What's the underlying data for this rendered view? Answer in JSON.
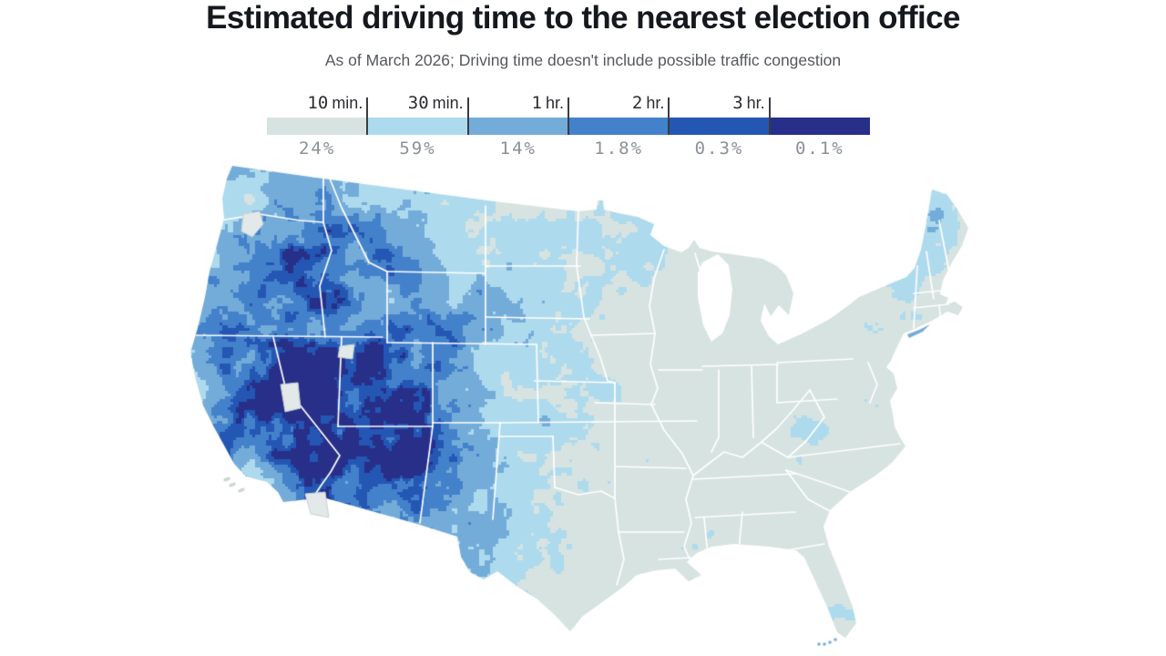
{
  "title": "Estimated driving time to the nearest election office",
  "subtitle": "As of March 2026; Driving time doesn't include possible traffic congestion",
  "legend": {
    "tick_labels": [
      "10 min.",
      "30 min.",
      "1 hr.",
      "2 hr.",
      "3 hr."
    ],
    "segment_percents": [
      "24%",
      "59%",
      "14%",
      "1.8%",
      "0.3%",
      "0.1%"
    ],
    "segment_colors": [
      "#d6e3e1",
      "#aedaee",
      "#74acd9",
      "#4481cb",
      "#2456b4",
      "#272f89"
    ],
    "tick_color": "#3a3d42"
  },
  "chart_data": {
    "type": "heatmap",
    "subtype": "choropleth-travel-time-map",
    "region": "Continental United States",
    "title": "Estimated driving time to the nearest election office",
    "subtitle": "As of March 2026; Driving time doesn't include possible traffic congestion",
    "bins": [
      "under 10 min.",
      "10-30 min.",
      "30 min.-1 hr.",
      "1-2 hr.",
      "2-3 hr.",
      "over 3 hr."
    ],
    "bin_boundary_labels": [
      "10 min.",
      "30 min.",
      "1 hr.",
      "2 hr.",
      "3 hr."
    ],
    "values_percent": [
      24,
      59,
      14,
      1.8,
      0.3,
      0.1
    ],
    "colors": [
      "#d6e3e1",
      "#aedaee",
      "#74acd9",
      "#4481cb",
      "#2456b4",
      "#272f89"
    ],
    "legend_position": "top",
    "notes": "Darker blue = longer driving time. Longest times concentrated in the Mountain West, west Texas, northern Minnesota, Adirondacks and northern Maine; shortest in the Midwest and East. White lines are state borders; Great Lakes shown in white."
  },
  "map": {
    "border_color": "#ffffff",
    "restricted_area_color": "#e3e8e8"
  }
}
